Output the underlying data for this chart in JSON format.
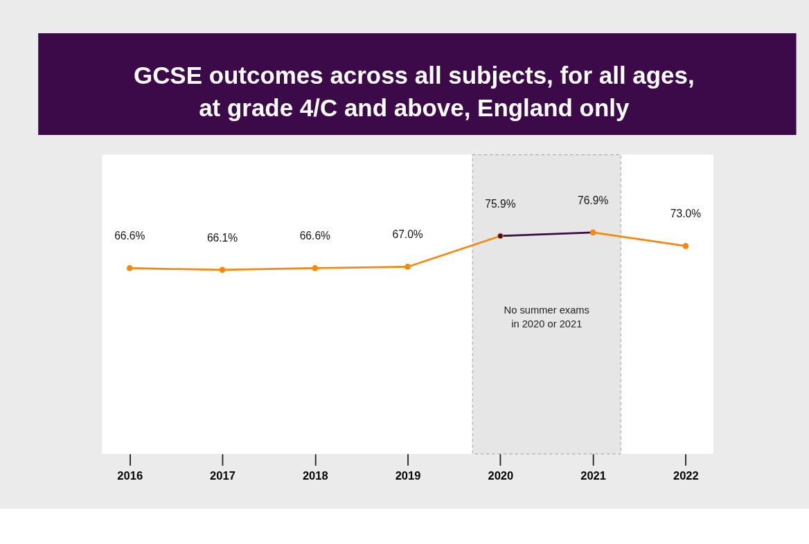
{
  "chart_data": {
    "type": "line",
    "title": "GCSE outcomes across all subjects, for all ages, at grade 4/C and above, England only",
    "categories": [
      "2016",
      "2017",
      "2018",
      "2019",
      "2020",
      "2021",
      "2022"
    ],
    "series": [
      {
        "color": "#f7870f",
        "values": [
          66.6,
          66.1,
          66.6,
          67.0,
          75.9,
          null,
          null
        ],
        "value_labels": [
          "66.6%",
          "66.1%",
          "66.6%",
          "67.0%",
          "75.9%",
          null,
          null
        ]
      },
      {
        "color": "#3c0a49",
        "values": [
          null,
          null,
          null,
          null,
          75.9,
          76.9,
          null
        ],
        "value_labels": [
          null,
          null,
          null,
          null,
          null,
          null,
          null
        ]
      },
      {
        "color": "#f7870f",
        "values": [
          null,
          null,
          null,
          null,
          null,
          76.9,
          73.0
        ],
        "value_labels": [
          null,
          null,
          null,
          null,
          null,
          "76.9%",
          "73.0%"
        ]
      }
    ],
    "tick_labels": "x",
    "grid": false,
    "marker": "circle",
    "line_style": "solid",
    "bands": [
      {
        "axis": "x",
        "from": "2020",
        "to": "2021",
        "label": "No summer exams in 2020 or 2021",
        "color": "#e6e6e6"
      }
    ]
  }
}
